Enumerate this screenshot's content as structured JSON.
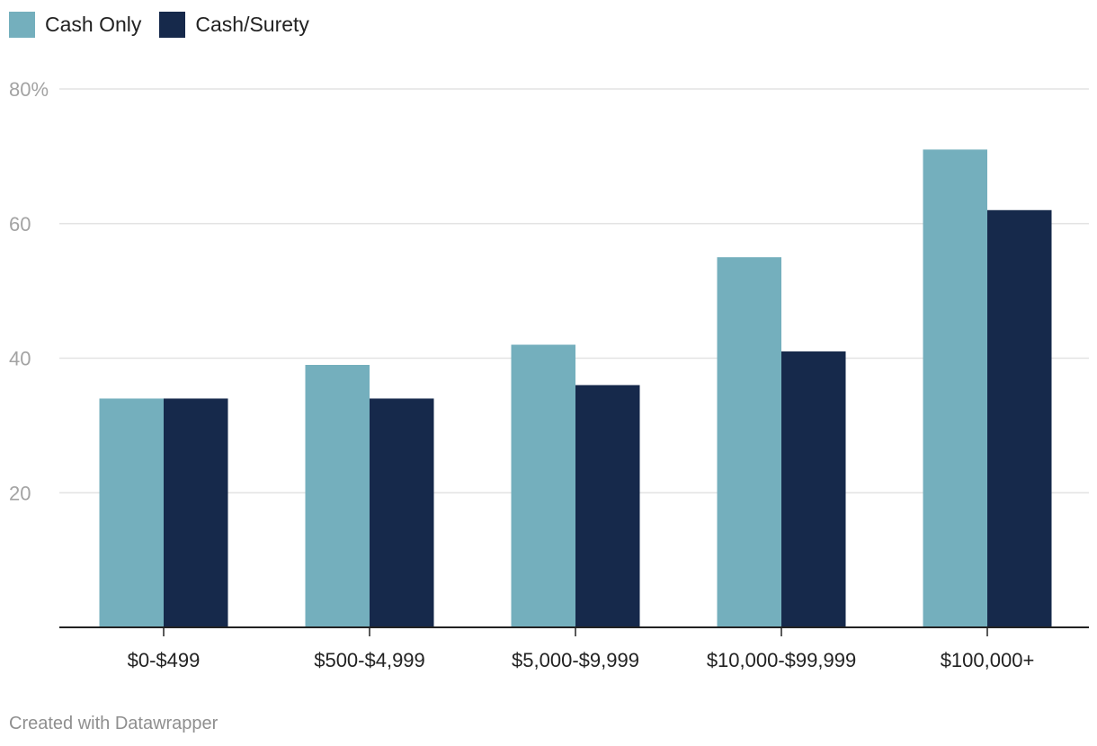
{
  "chart_data": {
    "type": "bar",
    "categories": [
      "$0-$499",
      "$500-$4,999",
      "$5,000-$9,999",
      "$10,000-$99,999",
      "$100,000+"
    ],
    "series": [
      {
        "name": "Cash Only",
        "color": "#74afbd",
        "values": [
          34,
          39,
          42,
          55,
          71
        ]
      },
      {
        "name": "Cash/Surety",
        "color": "#16294b",
        "values": [
          34,
          34,
          36,
          41,
          62
        ]
      }
    ],
    "ylim": [
      0,
      80
    ],
    "yticks": [
      20,
      40,
      60,
      80
    ],
    "ytick_labels": [
      "20",
      "40",
      "60",
      "80%"
    ],
    "xlabel": "",
    "ylabel": "",
    "grid": true,
    "legend": "top-left"
  },
  "legend": {
    "items": [
      {
        "label": "Cash Only",
        "color": "#74afbd"
      },
      {
        "label": "Cash/Surety",
        "color": "#16294b"
      }
    ]
  },
  "footer": {
    "credit": "Created with Datawrapper"
  }
}
